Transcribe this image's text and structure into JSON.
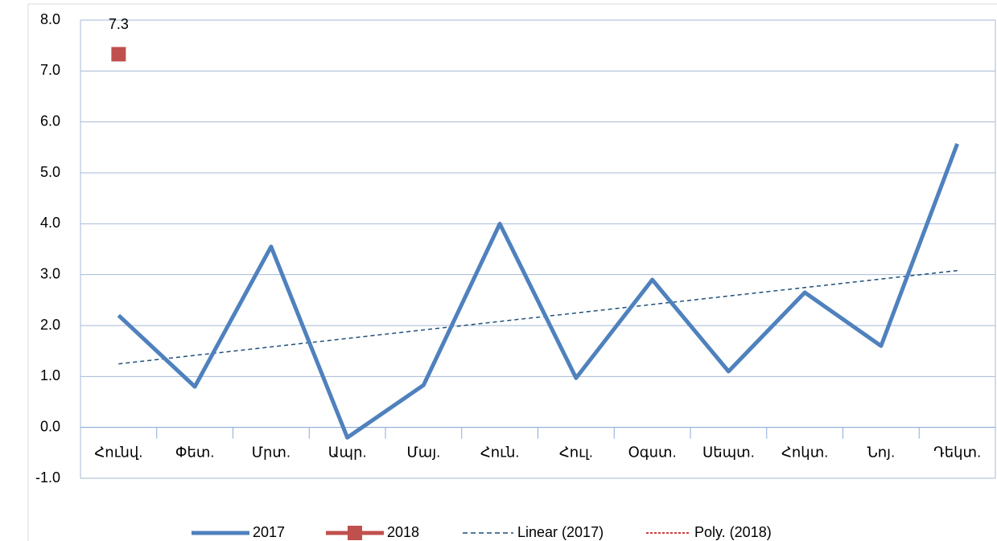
{
  "chart_data": {
    "type": "line",
    "categories": [
      "Հունվ.",
      "Փետ.",
      "Մրտ.",
      "Ապր.",
      "Մայ.",
      "Հուն.",
      "Հուլ.",
      "Օգստ.",
      "Սեպտ.",
      "Հոկտ.",
      "Նոյ.",
      "Դեկտ."
    ],
    "series": [
      {
        "name": "2017",
        "color": "#4f81bd",
        "values": [
          2.2,
          0.8,
          3.55,
          -0.2,
          0.83,
          4.0,
          0.97,
          2.9,
          1.1,
          2.65,
          1.6,
          5.57
        ]
      },
      {
        "name": "2018",
        "color": "#c0504d",
        "marker": "square",
        "values": [
          7.33,
          null,
          null,
          null,
          null,
          null,
          null,
          null,
          null,
          null,
          null,
          null
        ],
        "value_labels": [
          "7.3",
          null,
          null,
          null,
          null,
          null,
          null,
          null,
          null,
          null,
          null,
          null
        ]
      }
    ],
    "trendlines": [
      {
        "name": "Linear (2017)",
        "kind": "linear",
        "series": 0,
        "color": "#1f4e79"
      },
      {
        "name": "Poly. (2018)",
        "kind": "poly",
        "series": 1,
        "color": "#c00000"
      }
    ],
    "ylim": [
      -1,
      8
    ],
    "yticks": [
      {
        "value": -1,
        "label": "-1.0"
      },
      {
        "value": 0,
        "label": "0.0"
      },
      {
        "value": 1,
        "label": "1.0"
      },
      {
        "value": 2,
        "label": "2.0"
      },
      {
        "value": 3,
        "label": "3.0"
      },
      {
        "value": 4,
        "label": "4.0"
      },
      {
        "value": 5,
        "label": "5.0"
      },
      {
        "value": 6,
        "label": "6.0"
      },
      {
        "value": 7,
        "label": "7.0"
      },
      {
        "value": 8,
        "label": "8.0"
      }
    ],
    "grid": true,
    "legend": "bottom"
  }
}
